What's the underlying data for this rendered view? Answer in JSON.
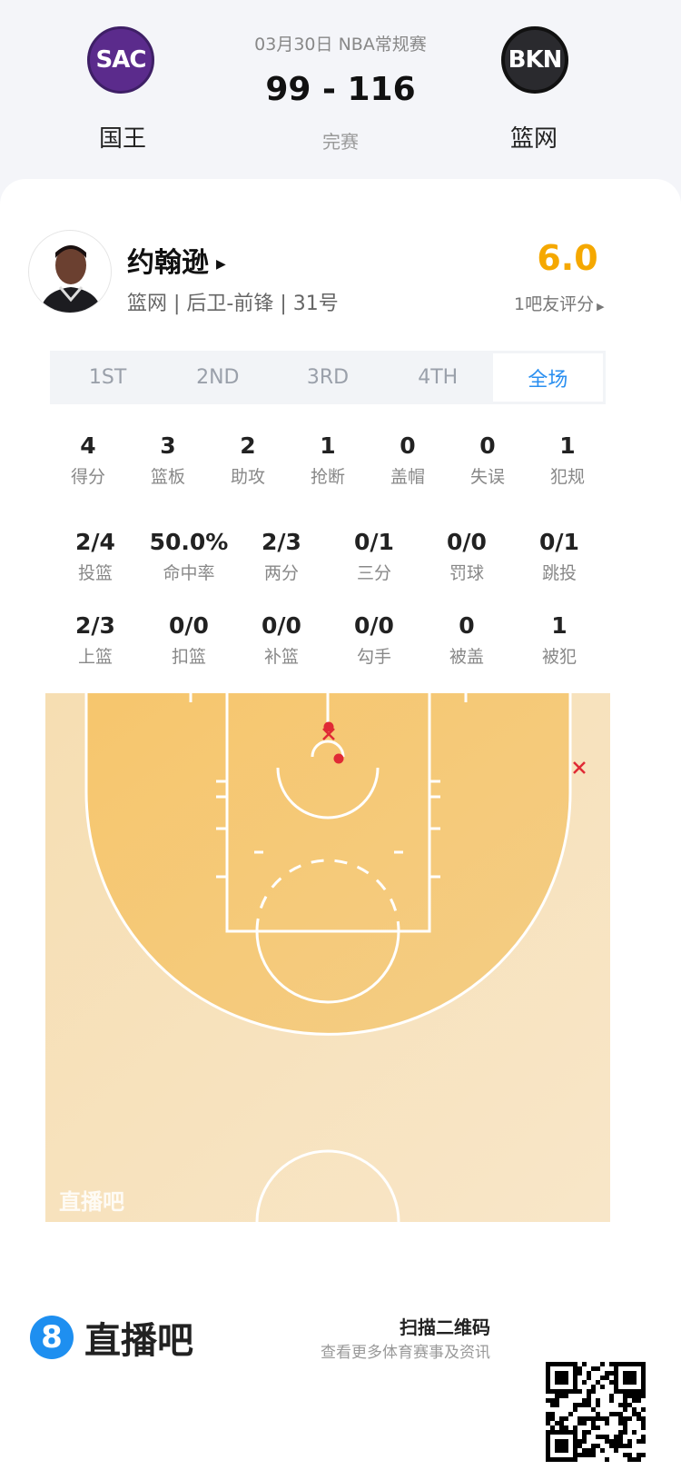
{
  "match": {
    "date_league": "03月30日 NBA常规赛",
    "score": "99 - 116",
    "status": "完赛",
    "home": {
      "abbr": "SAC",
      "name": "国王",
      "color": "#5b2b8c"
    },
    "away": {
      "abbr": "BKN",
      "name": "篮网",
      "color": "#2a2a2e"
    }
  },
  "player": {
    "name": "约翰逊",
    "info": "篮网 | 后卫-前锋 | 31号",
    "rating": "6.0",
    "rating_label": "1吧友评分",
    "rating_color": "#f5a800"
  },
  "tabs": [
    {
      "label": "1ST"
    },
    {
      "label": "2ND"
    },
    {
      "label": "3RD"
    },
    {
      "label": "4TH"
    },
    {
      "label": "全场",
      "active": true
    }
  ],
  "stats_row1": [
    {
      "v": "4",
      "l": "得分"
    },
    {
      "v": "3",
      "l": "篮板"
    },
    {
      "v": "2",
      "l": "助攻"
    },
    {
      "v": "1",
      "l": "抢断"
    },
    {
      "v": "0",
      "l": "盖帽"
    },
    {
      "v": "0",
      "l": "失误"
    },
    {
      "v": "1",
      "l": "犯规"
    }
  ],
  "stats_row2": [
    {
      "v": "2/4",
      "l": "投篮"
    },
    {
      "v": "50.0%",
      "l": "命中率"
    },
    {
      "v": "2/3",
      "l": "两分"
    },
    {
      "v": "0/1",
      "l": "三分"
    },
    {
      "v": "0/0",
      "l": "罚球"
    },
    {
      "v": "0/1",
      "l": "跳投"
    }
  ],
  "stats_row3": [
    {
      "v": "2/3",
      "l": "上篮"
    },
    {
      "v": "0/0",
      "l": "扣篮"
    },
    {
      "v": "0/0",
      "l": "补篮"
    },
    {
      "v": "0/0",
      "l": "勾手"
    },
    {
      "v": "0",
      "l": "被盖"
    },
    {
      "v": "1",
      "l": "被犯"
    }
  ],
  "shot_chart": {
    "made_color": "#e02a35",
    "shots": [
      {
        "result": "made"
      },
      {
        "result": "missed"
      },
      {
        "result": "made"
      },
      {
        "result": "missed"
      }
    ],
    "watermark": "直播吧"
  },
  "footer": {
    "brand": "直播吧",
    "brand_icon": "8",
    "brand_color": "#1e8ff0",
    "qr_title": "扫描二维码",
    "qr_sub": "查看更多体育赛事及资讯"
  }
}
